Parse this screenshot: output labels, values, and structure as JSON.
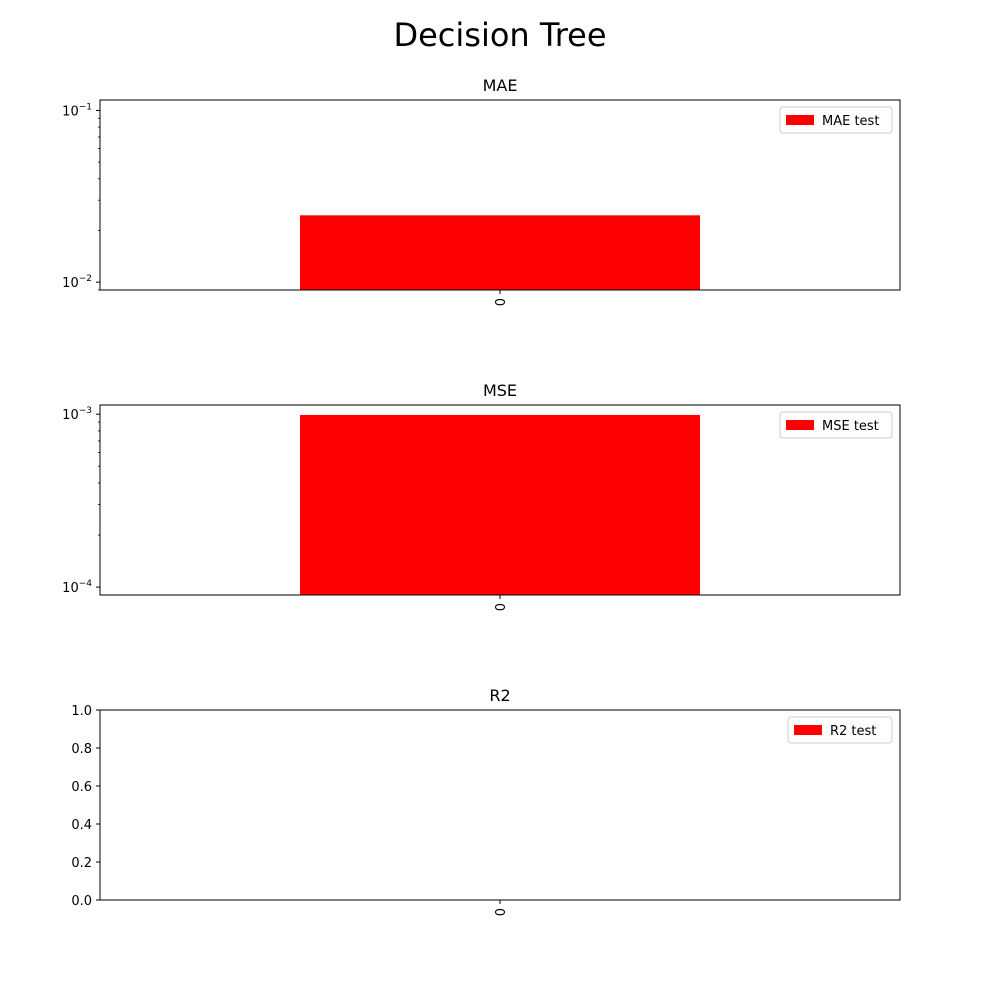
{
  "figure": {
    "title": "Decision Tree"
  },
  "chart_data": [
    {
      "type": "bar",
      "title": "MAE",
      "yscale": "log",
      "ylim": [
        0.009,
        0.115
      ],
      "y_ticks": [
        {
          "value": 0.01,
          "label": "10",
          "exp": "−2"
        },
        {
          "value": 0.1,
          "label": "10",
          "exp": "−1"
        }
      ],
      "categories": [
        "0"
      ],
      "series": [
        {
          "name": "MAE test",
          "values": [
            0.0245
          ],
          "color": "#ff0000"
        }
      ],
      "legend": "top-right",
      "grid": false
    },
    {
      "type": "bar",
      "title": "MSE",
      "yscale": "log",
      "ylim": [
        9e-05,
        0.00113
      ],
      "y_ticks": [
        {
          "value": 0.0001,
          "label": "10",
          "exp": "−4"
        },
        {
          "value": 0.001,
          "label": "10",
          "exp": "−3"
        }
      ],
      "categories": [
        "0"
      ],
      "series": [
        {
          "name": "MSE test",
          "values": [
            0.00099
          ],
          "color": "#ff0000"
        }
      ],
      "legend": "top-right",
      "grid": false
    },
    {
      "type": "bar",
      "title": "R2",
      "yscale": "linear",
      "ylim": [
        0.0,
        1.0
      ],
      "y_ticks": [
        {
          "value": 0.0,
          "label": "0.0"
        },
        {
          "value": 0.2,
          "label": "0.2"
        },
        {
          "value": 0.4,
          "label": "0.4"
        },
        {
          "value": 0.6,
          "label": "0.6"
        },
        {
          "value": 0.8,
          "label": "0.8"
        },
        {
          "value": 1.0,
          "label": "1.0"
        }
      ],
      "categories": [
        "0"
      ],
      "series": [
        {
          "name": "R2 test",
          "values": [
            null
          ],
          "color": "#ff0000"
        }
      ],
      "legend": "top-right",
      "grid": false
    }
  ]
}
